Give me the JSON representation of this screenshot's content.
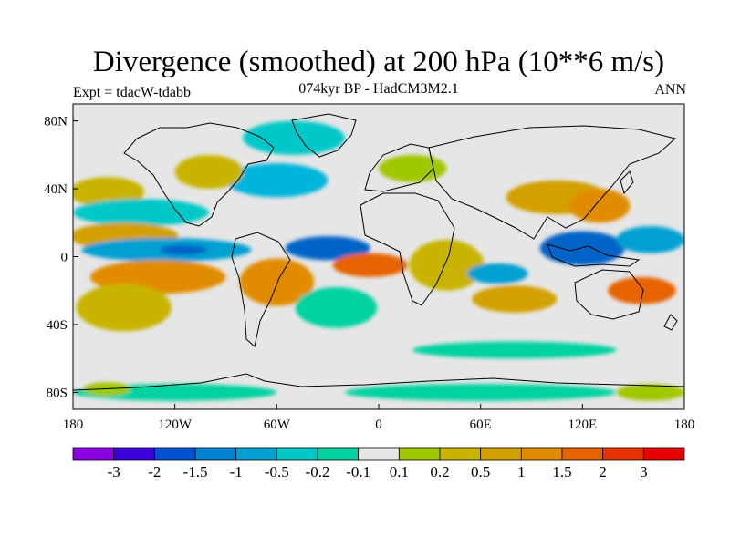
{
  "title": "Divergence (smoothed) at 200 hPa (10**6 m/s)",
  "subtitle": "074kyr BP - HadCM3M2.1",
  "experiment": "Expt = tdacW-tdabb",
  "period": "ANN",
  "map": {
    "projection": "cylindrical-equidistant",
    "lon_range": [
      -180,
      180
    ],
    "lat_range": [
      -90,
      90
    ],
    "background_color": "#e6e6e6",
    "x_ticks": [
      {
        "lon": -180,
        "label": "180"
      },
      {
        "lon": -120,
        "label": "120W"
      },
      {
        "lon": -60,
        "label": "60W"
      },
      {
        "lon": 0,
        "label": "0"
      },
      {
        "lon": 60,
        "label": "60E"
      },
      {
        "lon": 120,
        "label": "120E"
      },
      {
        "lon": 180,
        "label": "180"
      }
    ],
    "y_ticks": [
      {
        "lat": 80,
        "label": "80N"
      },
      {
        "lat": 40,
        "label": "40N"
      },
      {
        "lat": 0,
        "label": "0"
      },
      {
        "lat": -40,
        "label": "40S"
      },
      {
        "lat": -80,
        "label": "80S"
      }
    ],
    "fields": [
      {
        "name": "west-pacific-subtropical-positive",
        "lon": -160,
        "lat": 38,
        "rx": 22,
        "ry": 9,
        "color": "#c8b400"
      },
      {
        "name": "north-pacific-negative-band",
        "lon": -140,
        "lat": 26,
        "rx": 40,
        "ry": 8,
        "color": "#00c8c8"
      },
      {
        "name": "north-pacific-positive-band",
        "lon": -150,
        "lat": 12,
        "rx": 32,
        "ry": 8,
        "color": "#d2a000"
      },
      {
        "name": "eastern-pacific-itcz-negative",
        "lon": -125,
        "lat": 4,
        "rx": 50,
        "ry": 7,
        "color": "#00a0d2"
      },
      {
        "name": "eastern-pacific-itcz-core",
        "lon": -115,
        "lat": 4,
        "rx": 14,
        "ry": 3,
        "color": "#0064c8"
      },
      {
        "name": "southeast-pacific-positive",
        "lon": -130,
        "lat": -12,
        "rx": 40,
        "ry": 10,
        "color": "#e18c00"
      },
      {
        "name": "south-pacific-positive",
        "lon": -150,
        "lat": -30,
        "rx": 28,
        "ry": 14,
        "color": "#c8b400"
      },
      {
        "name": "south-america-positive",
        "lon": -60,
        "lat": -15,
        "rx": 22,
        "ry": 14,
        "color": "#e18c00"
      },
      {
        "name": "tropical-atlantic-negative",
        "lon": -30,
        "lat": 5,
        "rx": 25,
        "ry": 7,
        "color": "#0064c8"
      },
      {
        "name": "equatorial-atlantic-positive",
        "lon": -5,
        "lat": -5,
        "rx": 22,
        "ry": 7,
        "color": "#e66400"
      },
      {
        "name": "south-atlantic-negative",
        "lon": -25,
        "lat": -30,
        "rx": 24,
        "ry": 12,
        "color": "#00d2a0"
      },
      {
        "name": "north-atlantic-negative",
        "lon": -60,
        "lat": 45,
        "rx": 30,
        "ry": 10,
        "color": "#00b4dc"
      },
      {
        "name": "greenland-negative",
        "lon": -50,
        "lat": 70,
        "rx": 30,
        "ry": 10,
        "color": "#00c8c8"
      },
      {
        "name": "north-america-positive",
        "lon": -100,
        "lat": 50,
        "rx": 20,
        "ry": 10,
        "color": "#c8b400"
      },
      {
        "name": "europe-positive",
        "lon": 20,
        "lat": 52,
        "rx": 20,
        "ry": 8,
        "color": "#a0c800"
      },
      {
        "name": "africa-positive",
        "lon": 40,
        "lat": -5,
        "rx": 22,
        "ry": 15,
        "color": "#c8b400"
      },
      {
        "name": "indian-ocean-negative",
        "lon": 70,
        "lat": -10,
        "rx": 18,
        "ry": 6,
        "color": "#00a0d2"
      },
      {
        "name": "indian-ocean-positive",
        "lon": 80,
        "lat": -25,
        "rx": 25,
        "ry": 8,
        "color": "#d2a000"
      },
      {
        "name": "asia-positive",
        "lon": 105,
        "lat": 35,
        "rx": 30,
        "ry": 10,
        "color": "#d2a000"
      },
      {
        "name": "east-asia-positive",
        "lon": 130,
        "lat": 30,
        "rx": 18,
        "ry": 10,
        "color": "#e18c00"
      },
      {
        "name": "maritime-continent-negative",
        "lon": 120,
        "lat": 5,
        "rx": 25,
        "ry": 10,
        "color": "#0064c8"
      },
      {
        "name": "west-pacific-negative",
        "lon": 160,
        "lat": 10,
        "rx": 20,
        "ry": 8,
        "color": "#00a0d2"
      },
      {
        "name": "southwest-pacific-positive",
        "lon": 155,
        "lat": -20,
        "rx": 20,
        "ry": 8,
        "color": "#e66400"
      },
      {
        "name": "antarctic-negative-west",
        "lon": -120,
        "lat": -80,
        "rx": 60,
        "ry": 5,
        "color": "#00d2a0"
      },
      {
        "name": "antarctic-negative-east",
        "lon": 60,
        "lat": -80,
        "rx": 80,
        "ry": 5,
        "color": "#00d2a0"
      },
      {
        "name": "antarctic-positive-west",
        "lon": -160,
        "lat": -78,
        "rx": 14,
        "ry": 4,
        "color": "#a0c800"
      },
      {
        "name": "antarctic-positive-east",
        "lon": 160,
        "lat": -80,
        "rx": 20,
        "ry": 5,
        "color": "#a0c800"
      },
      {
        "name": "subpolar-south-negative",
        "lon": 80,
        "lat": -55,
        "rx": 60,
        "ry": 5,
        "color": "#00d2a0"
      }
    ]
  },
  "colorbar": {
    "colors": [
      "#8c00e6",
      "#3c00dc",
      "#0050d2",
      "#0082d2",
      "#00a0d2",
      "#00c8c8",
      "#00d2a0",
      "#e6e6e6",
      "#a0c800",
      "#c8b400",
      "#d2a000",
      "#e18c00",
      "#e66400",
      "#e63200",
      "#e60000"
    ],
    "labels": [
      "-3",
      "-2",
      "-1.5",
      "-1",
      "-0.5",
      "-0.2",
      "-0.1",
      "0.1",
      "0.2",
      "0.5",
      "1",
      "1.5",
      "2",
      "3"
    ]
  }
}
